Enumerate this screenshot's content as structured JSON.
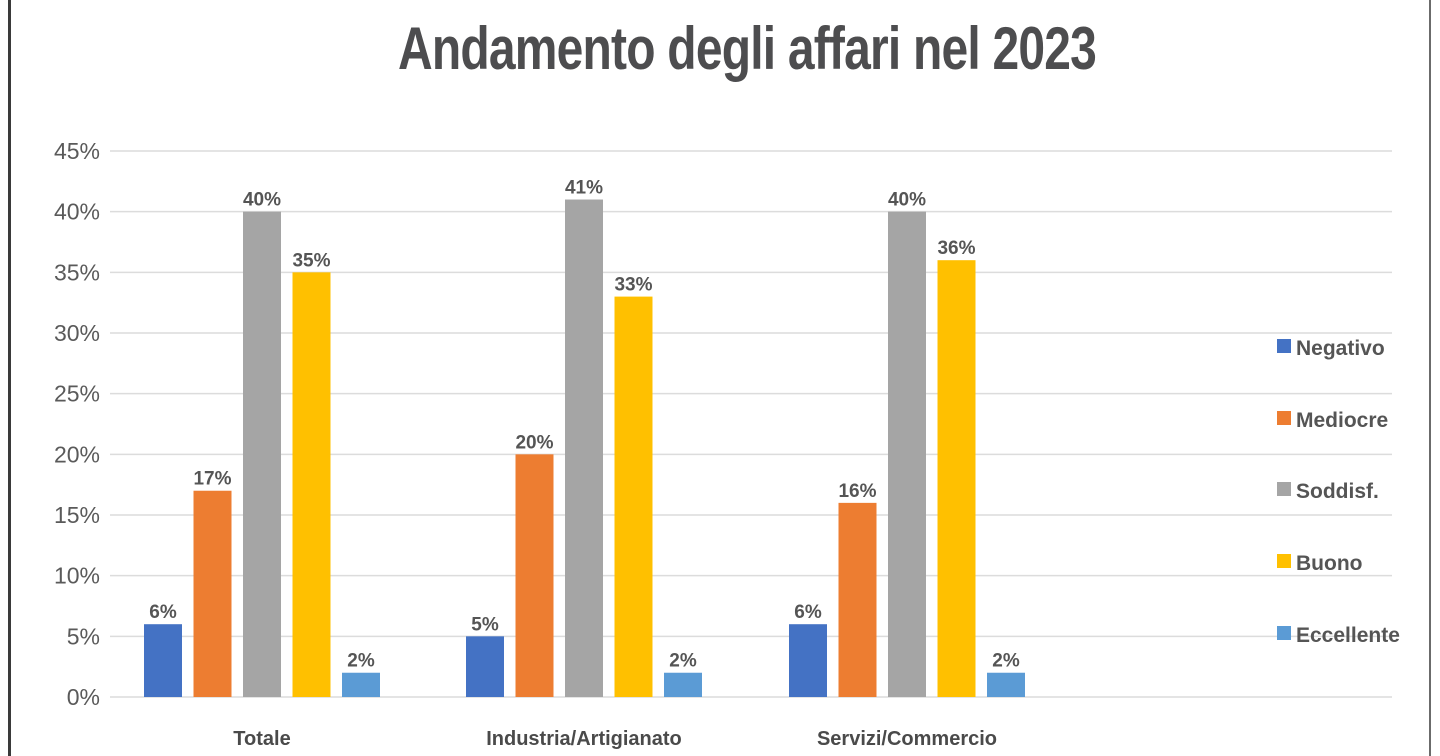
{
  "chart_data": {
    "type": "bar",
    "title": "Andamento degli affari nel 2023",
    "xlabel": "",
    "ylabel": "",
    "ylim": [
      0,
      45
    ],
    "yticks": [
      "0%",
      "5%",
      "10%",
      "15%",
      "20%",
      "25%",
      "30%",
      "35%",
      "40%",
      "45%"
    ],
    "ytick_values": [
      0,
      5,
      10,
      15,
      20,
      25,
      30,
      35,
      40,
      45
    ],
    "grid": true,
    "legend_position": "right",
    "categories": [
      "Totale",
      "Industria/Artigianato",
      "Servizi/Commercio"
    ],
    "series": [
      {
        "name": "Negativo",
        "color": "#4472C4",
        "values": [
          6,
          5,
          6
        ],
        "labels": [
          "6%",
          "5%",
          "6%"
        ]
      },
      {
        "name": "Mediocre",
        "color": "#ED7D31",
        "values": [
          17,
          20,
          16
        ],
        "labels": [
          "17%",
          "20%",
          "16%"
        ]
      },
      {
        "name": "Soddisf.",
        "color": "#A5A5A5",
        "values": [
          40,
          41,
          40
        ],
        "labels": [
          "40%",
          "41%",
          "40%"
        ]
      },
      {
        "name": "Buono",
        "color": "#FFC000",
        "values": [
          35,
          33,
          36
        ],
        "labels": [
          "35%",
          "33%",
          "36%"
        ]
      },
      {
        "name": "Eccellente",
        "color": "#5B9BD5",
        "values": [
          2,
          2,
          2
        ],
        "labels": [
          "2%",
          "2%",
          "2%"
        ]
      }
    ]
  }
}
